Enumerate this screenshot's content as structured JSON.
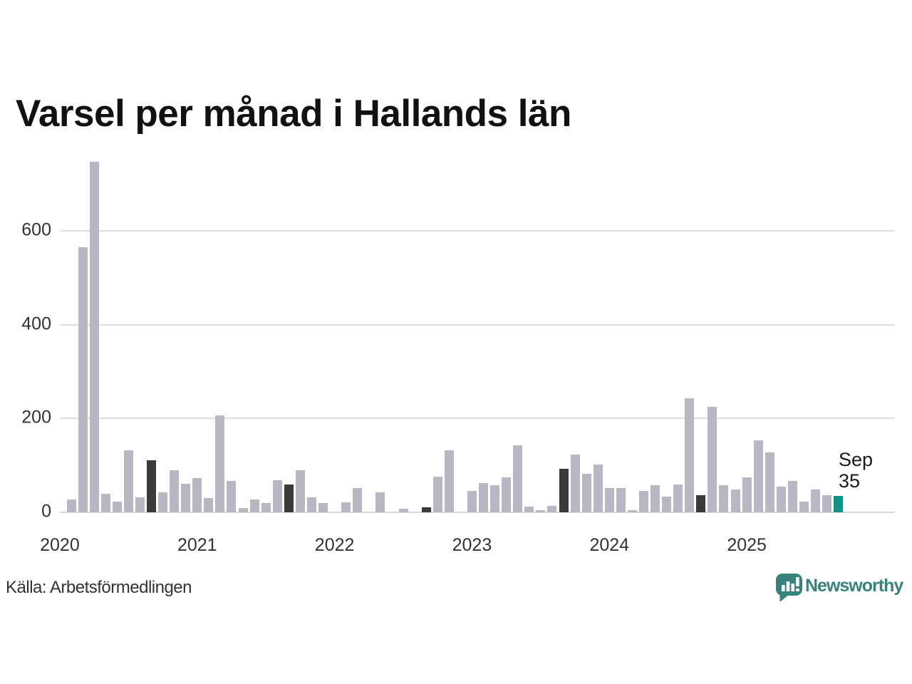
{
  "title": "Varsel per månad i Hallands län",
  "source": "Källa: Arbetsförmedlingen",
  "annotation": {
    "month": "Sep",
    "value": "35"
  },
  "logo_text": "Newsworthy",
  "colors": {
    "bar": "#b9b7c4",
    "bar_dark": "#3a3a3a",
    "bar_accent": "#0f9287",
    "grid": "#dfdfdf",
    "axis_text": "#333333",
    "logo": "#36837c"
  },
  "chart_data": {
    "type": "bar",
    "title": "Varsel per månad i Hallands län",
    "x": [
      "2020-02",
      "2020-03",
      "2020-04",
      "2020-05",
      "2020-06",
      "2020-07",
      "2020-08",
      "2020-09",
      "2020-10",
      "2020-11",
      "2020-12",
      "2021-01",
      "2021-02",
      "2021-03",
      "2021-04",
      "2021-05",
      "2021-06",
      "2021-07",
      "2021-08",
      "2021-09",
      "2021-10",
      "2021-11",
      "2021-12",
      "2022-01",
      "2022-02",
      "2022-03",
      "2022-04",
      "2022-05",
      "2022-06",
      "2022-07",
      "2022-08",
      "2022-09",
      "2022-10",
      "2022-11",
      "2022-12",
      "2023-01",
      "2023-02",
      "2023-03",
      "2023-04",
      "2023-05",
      "2023-06",
      "2023-07",
      "2023-08",
      "2023-09",
      "2023-10",
      "2023-11",
      "2023-12",
      "2024-01",
      "2024-02",
      "2024-03",
      "2024-04",
      "2024-05",
      "2024-06",
      "2024-07",
      "2024-08",
      "2024-09",
      "2024-10",
      "2024-11",
      "2024-12",
      "2025-01",
      "2025-02",
      "2025-03",
      "2025-04",
      "2025-05",
      "2025-06",
      "2025-07",
      "2025-08",
      "2025-09"
    ],
    "values": [
      28,
      565,
      748,
      40,
      23,
      132,
      32,
      111,
      43,
      90,
      61,
      73,
      30,
      206,
      67,
      9,
      28,
      20,
      68,
      60,
      90,
      32,
      19,
      0,
      21,
      52,
      0,
      43,
      0,
      8,
      0,
      10,
      76,
      132,
      0,
      45,
      62,
      58,
      75,
      143,
      12,
      5,
      14,
      93,
      123,
      82,
      102,
      51,
      52,
      4,
      46,
      58,
      34,
      59,
      243,
      36,
      225,
      58,
      48,
      74,
      153,
      127,
      54,
      67,
      23,
      49,
      36,
      35
    ],
    "september_dark_indices": [
      7,
      19,
      31,
      43,
      55
    ],
    "current_index": 67,
    "annotation_label": "Sep 35",
    "yticks": [
      0,
      200,
      400,
      600
    ],
    "ylim": [
      0,
      760
    ],
    "year_ticks": [
      {
        "label": "2020",
        "offset": -1
      },
      {
        "label": "2021",
        "offset": 11
      },
      {
        "label": "2022",
        "offset": 23
      },
      {
        "label": "2023",
        "offset": 35
      },
      {
        "label": "2024",
        "offset": 47
      },
      {
        "label": "2025",
        "offset": 59
      }
    ]
  }
}
